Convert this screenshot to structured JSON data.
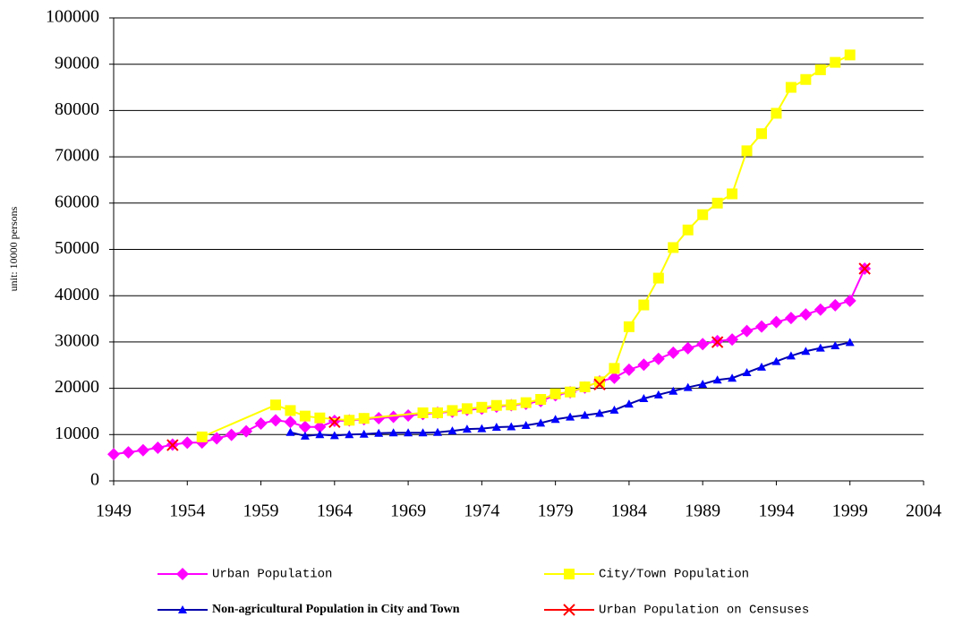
{
  "chart_data": {
    "type": "line",
    "y_label": "unit: 10000 persons",
    "xlim": [
      1949,
      2004
    ],
    "xticks": [
      1949,
      1954,
      1959,
      1964,
      1969,
      1974,
      1979,
      1984,
      1989,
      1994,
      1999,
      2004
    ],
    "ylim": [
      0,
      100000
    ],
    "yticks": [
      0,
      10000,
      20000,
      30000,
      40000,
      50000,
      60000,
      70000,
      80000,
      90000,
      100000
    ],
    "grid": true,
    "legend": "bottom",
    "series": [
      {
        "name": "Urban Population",
        "color": "#ff00ff",
        "marker": "diamond",
        "line": true,
        "x": [
          1949,
          1950,
          1951,
          1952,
          1953,
          1954,
          1955,
          1956,
          1957,
          1958,
          1959,
          1960,
          1961,
          1962,
          1963,
          1964,
          1965,
          1966,
          1967,
          1968,
          1969,
          1970,
          1971,
          1972,
          1973,
          1974,
          1975,
          1976,
          1977,
          1978,
          1979,
          1980,
          1981,
          1982,
          1983,
          1984,
          1985,
          1986,
          1987,
          1988,
          1989,
          1990,
          1991,
          1992,
          1993,
          1994,
          1995,
          1996,
          1997,
          1998,
          1999,
          2000
        ],
        "values": [
          5765,
          6169,
          6632,
          7163,
          7826,
          8249,
          8285,
          9185,
          9949,
          10721,
          12371,
          13073,
          12707,
          11659,
          11646,
          12950,
          13045,
          13313,
          13548,
          13838,
          14117,
          14424,
          14711,
          14935,
          15345,
          15595,
          16030,
          16341,
          16669,
          17245,
          18495,
          19140,
          20171,
          21480,
          22274,
          24017,
          25094,
          26366,
          27674,
          28661,
          29540,
          30195,
          30543,
          32372,
          33351,
          34301,
          35174,
          35950,
          36989,
          37942,
          38892,
          45844
        ]
      },
      {
        "name": "City/Town Population",
        "color": "#ffff00",
        "marker": "square",
        "line": true,
        "x": [
          1955,
          1960,
          1961,
          1962,
          1963,
          1965,
          1966,
          1970,
          1971,
          1972,
          1973,
          1974,
          1975,
          1976,
          1977,
          1978,
          1979,
          1980,
          1981,
          1982,
          1983,
          1984,
          1985,
          1986,
          1987,
          1988,
          1989,
          1990,
          1991,
          1992,
          1993,
          1994,
          1995,
          1996,
          1997,
          1998,
          1999
        ],
        "values": [
          9500,
          16400,
          15200,
          14000,
          13600,
          13100,
          13500,
          14700,
          14700,
          15200,
          15600,
          15900,
          16300,
          16400,
          16900,
          17600,
          18800,
          19200,
          20300,
          21400,
          24300,
          33300,
          38000,
          43800,
          50400,
          54200,
          57500,
          60000,
          62000,
          71300,
          75000,
          79400,
          85000,
          86700,
          88800,
          90400,
          92000
        ]
      },
      {
        "name": "Non-agricultural Population in City and Town",
        "color": "#0000ff",
        "marker": "triangle",
        "line": true,
        "x": [
          1961,
          1962,
          1963,
          1964,
          1965,
          1966,
          1967,
          1968,
          1969,
          1970,
          1971,
          1972,
          1973,
          1974,
          1975,
          1976,
          1977,
          1978,
          1979,
          1980,
          1981,
          1982,
          1983,
          1984,
          1985,
          1986,
          1987,
          1988,
          1989,
          1990,
          1991,
          1992,
          1993,
          1994,
          1995,
          1996,
          1997,
          1998,
          1999
        ],
        "values": [
          10500,
          9700,
          10000,
          9800,
          10000,
          10100,
          10300,
          10400,
          10400,
          10400,
          10500,
          10800,
          11200,
          11300,
          11600,
          11700,
          12000,
          12500,
          13300,
          13800,
          14200,
          14600,
          15300,
          16600,
          17800,
          18600,
          19400,
          20200,
          20900,
          21800,
          22200,
          23400,
          24600,
          25800,
          27000,
          28000,
          28700,
          29200,
          29900
        ]
      },
      {
        "name": "Urban Population on Censuses",
        "color": "#ff0000",
        "marker": "x",
        "line": false,
        "x": [
          1953,
          1964,
          1982,
          1990,
          2000
        ],
        "values": [
          7726,
          12710,
          20831,
          29971,
          45844
        ]
      }
    ]
  }
}
